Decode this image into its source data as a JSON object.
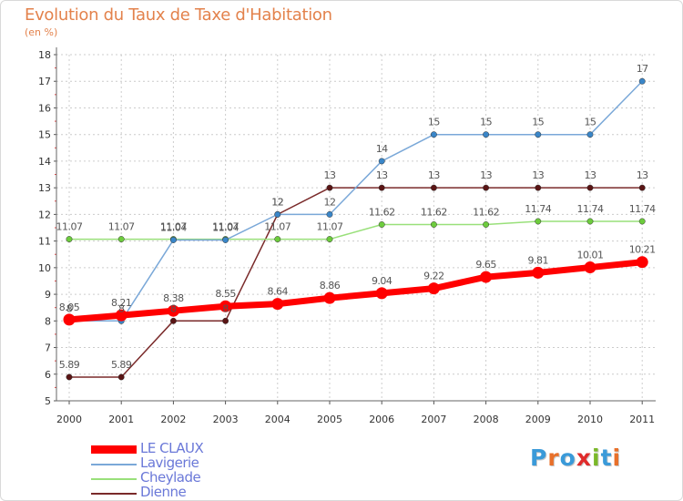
{
  "title": "Evolution du Taux de Taxe d'Habitation",
  "subtitle": "(en %)",
  "logo": {
    "letters": [
      "P",
      "r",
      "o",
      "x",
      "i",
      "t",
      "i"
    ],
    "colors": [
      "#3a9ad9",
      "#e8702a",
      "#3a9ad9",
      "#e02b2b",
      "#7ab829",
      "#3a9ad9",
      "#e8702a"
    ]
  },
  "chart_data": {
    "type": "line",
    "x": [
      "2000",
      "2001",
      "2002",
      "2003",
      "2004",
      "2005",
      "2006",
      "2007",
      "2008",
      "2009",
      "2010",
      "2011"
    ],
    "ylim": [
      5,
      18
    ],
    "yticks": [
      "5",
      "6",
      "7",
      "8",
      "9",
      "10",
      "11",
      "12",
      "13",
      "14",
      "15",
      "16",
      "17",
      "18"
    ],
    "grid": true,
    "legend_position": "bottom-left",
    "series": [
      {
        "name": "LE CLAUX",
        "color": "#ff0000",
        "labelColor": "#555555",
        "values": [
          8.05,
          8.21,
          8.38,
          8.55,
          8.64,
          8.86,
          9.04,
          9.22,
          9.65,
          9.81,
          10.01,
          10.21
        ],
        "labels": [
          "8.05",
          "8.21",
          "8.38",
          "8.55",
          "8.64",
          "8.86",
          "9.04",
          "9.22",
          "9.65",
          "9.81",
          "10.01",
          "10.21"
        ]
      },
      {
        "name": "Lavigerie",
        "color": "#7aa8d8",
        "dotColor": "#3a86c8",
        "labelColor": "#555555",
        "values": [
          8,
          8,
          11.04,
          11.04,
          12,
          12,
          14,
          15,
          15,
          15,
          15,
          17
        ],
        "labels": [
          "8",
          "8",
          "11.04",
          "11.04",
          "12",
          "12",
          "14",
          "15",
          "15",
          "15",
          "15",
          "17"
        ]
      },
      {
        "name": "Cheylade",
        "color": "#99e07a",
        "dotColor": "#6dcc3d",
        "labelColor": "#555555",
        "values": [
          11.07,
          11.07,
          11.07,
          11.07,
          11.07,
          11.07,
          11.62,
          11.62,
          11.62,
          11.74,
          11.74,
          11.74
        ],
        "labels": [
          "11.07",
          "11.07",
          "11.07",
          "11.07",
          "11.07",
          "11.07",
          "11.62",
          "11.62",
          "11.62",
          "11.74",
          "11.74",
          "11.74"
        ]
      },
      {
        "name": "Dienne",
        "color": "#7a2a2a",
        "dotColor": "#5a1515",
        "labelColor": "#555555",
        "values": [
          5.89,
          5.89,
          8,
          8,
          12,
          13,
          13,
          13,
          13,
          13,
          13,
          13
        ],
        "labels": [
          "5.89",
          "5.89",
          "8",
          "8",
          "12",
          "13",
          "13",
          "13",
          "13",
          "13",
          "13",
          "13"
        ]
      }
    ]
  }
}
